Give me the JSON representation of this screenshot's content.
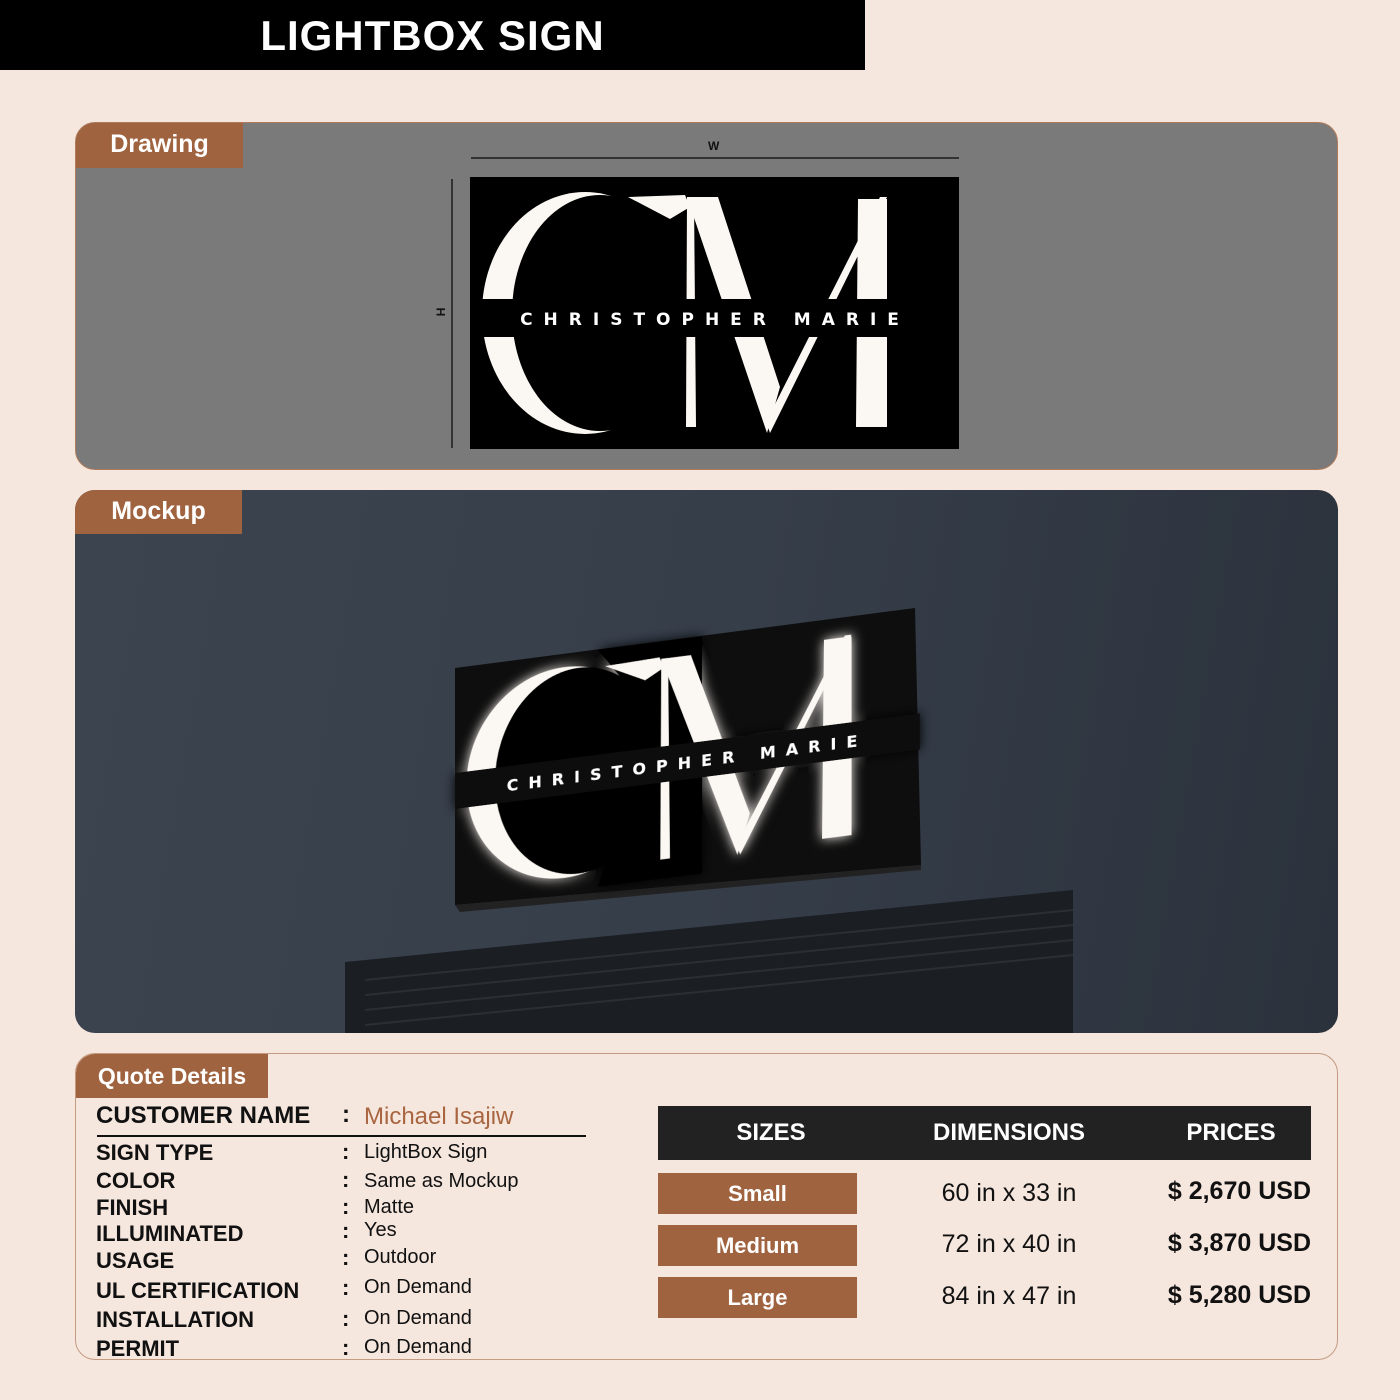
{
  "title": "LIGHTBOX SIGN",
  "drawing": {
    "tab": "Drawing",
    "width_label": "W",
    "height_label": "H"
  },
  "logo": {
    "monogram": "CM",
    "name": "CHRISTOPHER MARIE"
  },
  "mockup": {
    "tab": "Mockup"
  },
  "quote": {
    "tab": "Quote Details",
    "customer_label": "CUSTOMER NAME",
    "customer_value": "Michael Isajiw",
    "separator": ":",
    "fields": [
      {
        "label": "SIGN TYPE",
        "value": "LightBox Sign"
      },
      {
        "label": "COLOR",
        "value": "Same as Mockup"
      },
      {
        "label": "FINISH",
        "value": "Matte"
      },
      {
        "label": "ILLUMINATED",
        "value": "Yes"
      },
      {
        "label": "USAGE",
        "value": "Outdoor"
      },
      {
        "label": "UL CERTIFICATION",
        "value": "On Demand"
      },
      {
        "label": "INSTALLATION",
        "value": "On Demand"
      },
      {
        "label": "PERMIT",
        "value": "On Demand"
      }
    ],
    "table": {
      "headers": [
        "SIZES",
        "DIMENSIONS",
        "PRICES"
      ],
      "rows": [
        {
          "size": "Small",
          "dimensions": "60 in x 33 in",
          "price": "$ 2,670 USD"
        },
        {
          "size": "Medium",
          "dimensions": "72 in x 40 in",
          "price": "$ 3,870 USD"
        },
        {
          "size": "Large",
          "dimensions": "84 in x 47 in",
          "price": "$ 5,280 USD"
        }
      ]
    }
  },
  "colors": {
    "accent": "#a0633f",
    "background": "#f5e6de",
    "customer_name": "#a8653f"
  }
}
